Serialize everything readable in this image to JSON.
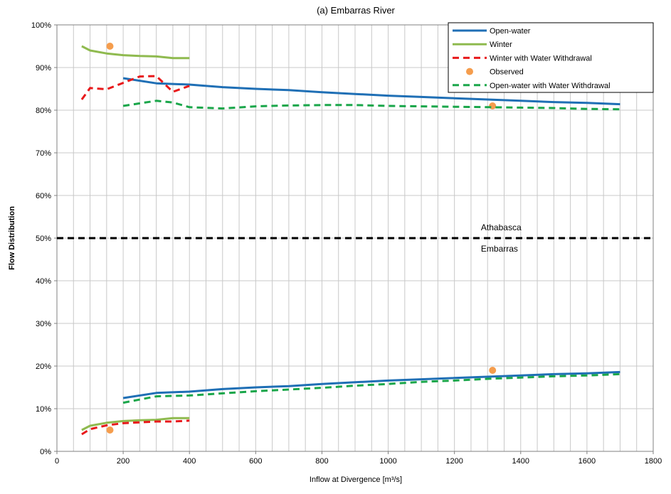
{
  "chart_data": {
    "type": "line",
    "title": "(a) Embarras River",
    "xlabel": "Inflow at Divergence [m³/s]",
    "ylabel": "Flow Distribution",
    "xlim": [
      0,
      1800
    ],
    "ylim": [
      0,
      100
    ],
    "x_ticks": [
      0,
      200,
      400,
      600,
      800,
      1000,
      1200,
      1400,
      1600,
      1800
    ],
    "x_tick_labels": [
      "0",
      "200",
      "400",
      "600",
      "800",
      "1000",
      "1200",
      "1400",
      "1600",
      "1800"
    ],
    "y_ticks": [
      0,
      10,
      20,
      30,
      40,
      50,
      60,
      70,
      80,
      90,
      100
    ],
    "y_tick_labels": [
      "0%",
      "10%",
      "20%",
      "30%",
      "40%",
      "50%",
      "60%",
      "70%",
      "80%",
      "90%",
      "100%"
    ],
    "x_minor_step": 50,
    "grid": true,
    "legend_position": "top-right",
    "annotations": [
      {
        "text": "Athabasca",
        "x": 1280,
        "y": 52.5
      },
      {
        "text": "Embarras",
        "x": 1280,
        "y": 47.5
      }
    ],
    "divider": {
      "y": 50,
      "color": "#000000"
    },
    "series": [
      {
        "name": "Open-water",
        "style": "solid",
        "color": "#1f6fb5",
        "groups": [
          {
            "x": [
              200,
              300,
              400,
              500,
              600,
              700,
              800,
              900,
              1000,
              1100,
              1200,
              1300,
              1400,
              1500,
              1600,
              1700
            ],
            "y": [
              87.5,
              86.3,
              86.0,
              85.4,
              85.0,
              84.7,
              84.2,
              83.8,
              83.4,
              83.1,
              82.8,
              82.5,
              82.2,
              81.9,
              81.7,
              81.4
            ]
          },
          {
            "x": [
              200,
              300,
              400,
              500,
              600,
              700,
              800,
              900,
              1000,
              1100,
              1200,
              1300,
              1400,
              1500,
              1600,
              1700
            ],
            "y": [
              12.5,
              13.7,
              14.0,
              14.6,
              15.0,
              15.3,
              15.8,
              16.2,
              16.6,
              16.9,
              17.2,
              17.5,
              17.8,
              18.1,
              18.3,
              18.6
            ]
          }
        ]
      },
      {
        "name": "Winter",
        "style": "solid",
        "color": "#8fba4f",
        "groups": [
          {
            "x": [
              75,
              100,
              150,
              200,
              250,
              300,
              350,
              400
            ],
            "y": [
              95.0,
              94.0,
              93.3,
              92.9,
              92.7,
              92.6,
              92.2,
              92.2
            ]
          },
          {
            "x": [
              75,
              100,
              150,
              200,
              250,
              300,
              350,
              400
            ],
            "y": [
              5.0,
              6.0,
              6.7,
              7.1,
              7.3,
              7.4,
              7.8,
              7.8
            ]
          }
        ]
      },
      {
        "name": "Winter with Water Withdrawal",
        "style": "dashed",
        "color": "#e8191b",
        "groups": [
          {
            "x": [
              75,
              100,
              150,
              200,
              250,
              300,
              350,
              400
            ],
            "y": [
              82.5,
              85.2,
              84.9,
              86.4,
              87.9,
              88.0,
              84.3,
              85.7
            ]
          },
          {
            "x": [
              75,
              100,
              150,
              200,
              250,
              300,
              350,
              400
            ],
            "y": [
              4.0,
              5.2,
              6.1,
              6.6,
              6.8,
              7.0,
              7.0,
              7.2
            ]
          }
        ]
      },
      {
        "name": "Observed",
        "style": "marker",
        "color": "#f59d4d",
        "points": {
          "x": [
            160,
            1315,
            160,
            1315
          ],
          "y": [
            95.0,
            81.0,
            5.0,
            19.0
          ]
        }
      },
      {
        "name": "Open-water with Water Withdrawal",
        "style": "dashed",
        "color": "#1aa64a",
        "groups": [
          {
            "x": [
              200,
              250,
              300,
              350,
              400,
              500,
              600,
              700,
              800,
              900,
              1000,
              1100,
              1200,
              1300,
              1400,
              1500,
              1600,
              1700
            ],
            "y": [
              81.0,
              81.6,
              82.2,
              81.8,
              80.7,
              80.4,
              80.9,
              81.1,
              81.2,
              81.2,
              81.0,
              80.9,
              80.8,
              80.7,
              80.6,
              80.5,
              80.3,
              80.2
            ]
          },
          {
            "x": [
              200,
              300,
              400,
              500,
              600,
              700,
              800,
              900,
              1000,
              1100,
              1200,
              1300,
              1400,
              1500,
              1600,
              1700
            ],
            "y": [
              11.4,
              12.9,
              13.1,
              13.6,
              14.1,
              14.5,
              14.9,
              15.4,
              15.8,
              16.3,
              16.6,
              17.0,
              17.3,
              17.6,
              17.8,
              18.1
            ]
          }
        ]
      }
    ]
  }
}
